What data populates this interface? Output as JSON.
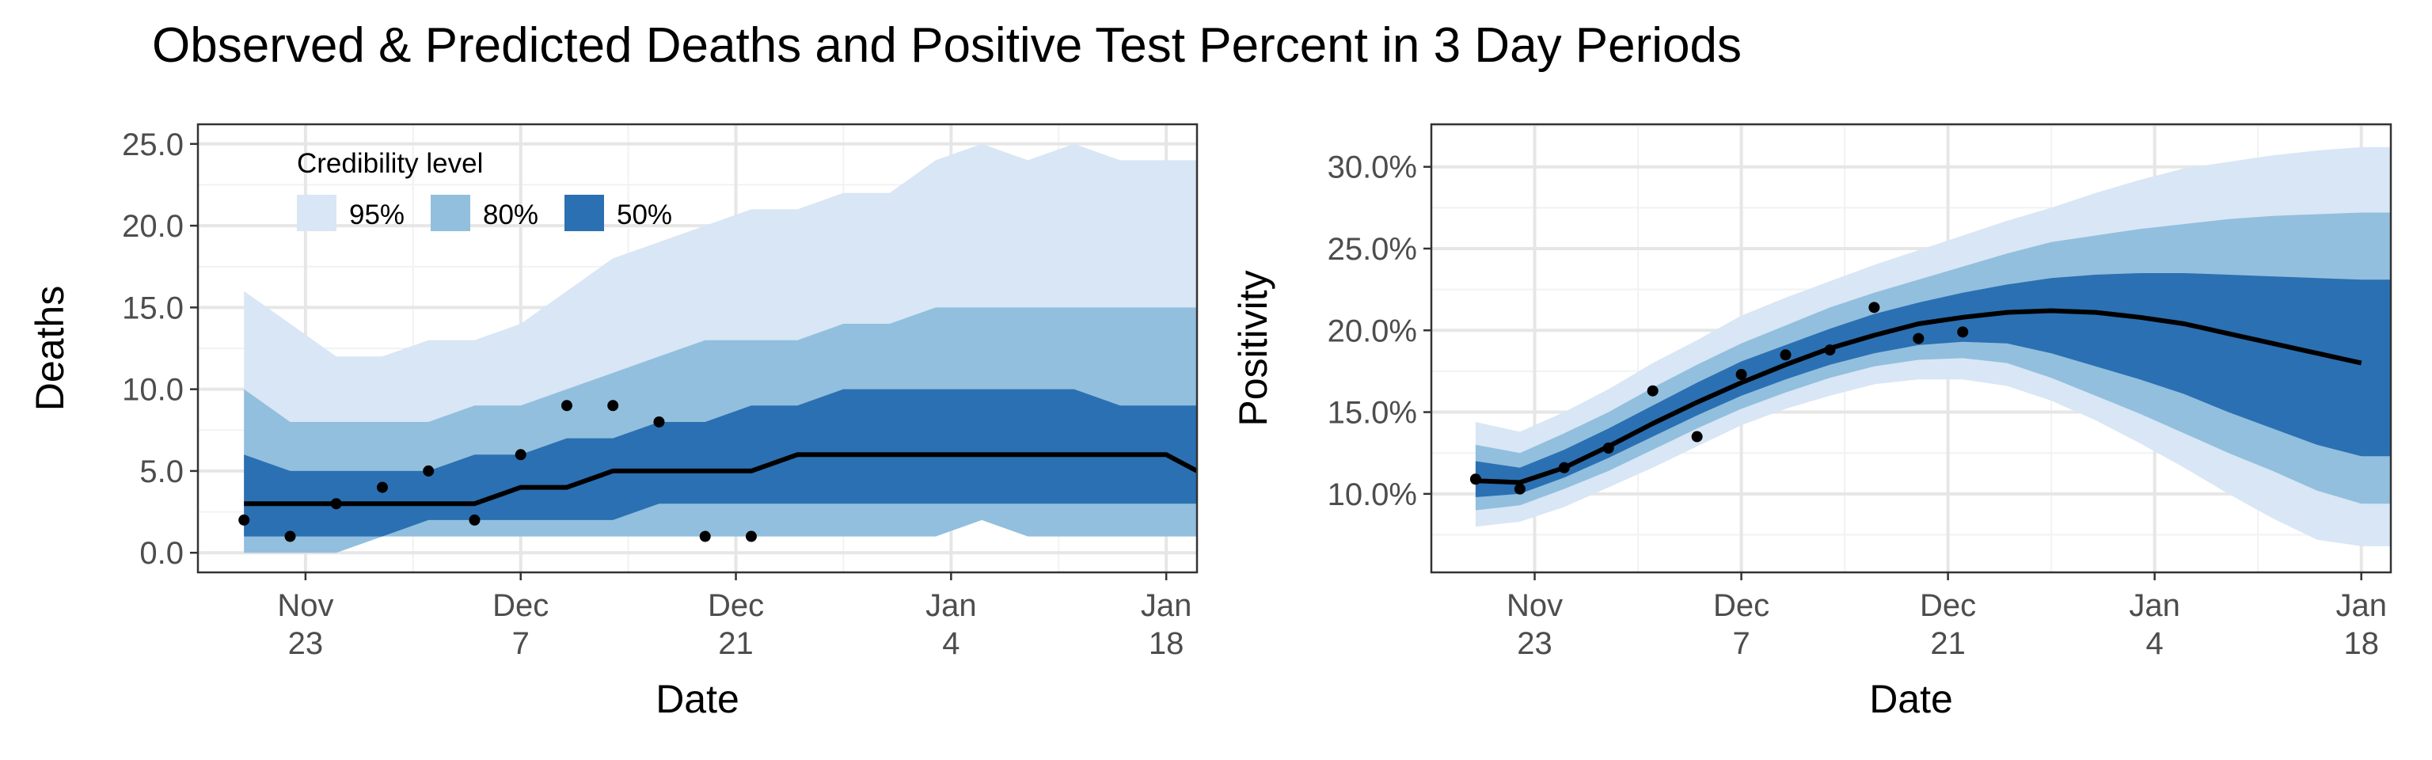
{
  "title": "Observed & Predicted Deaths and Positive Test Percent in 3 Day Periods",
  "colors": {
    "band95": "#d8e6f5",
    "band80": "#92bfdd",
    "band50": "#2b70b2",
    "line": "#000000",
    "point": "#000000"
  },
  "legend": {
    "title": "Credibility level",
    "placement": "inside-top-left (left panel)",
    "entries": [
      {
        "label": "95%",
        "color": "#d8e6f5"
      },
      {
        "label": "80%",
        "color": "#92bfdd"
      },
      {
        "label": "50%",
        "color": "#2b70b2"
      }
    ]
  },
  "chart_data": [
    {
      "type": "area",
      "xlabel": "Date",
      "ylabel": "Deaths",
      "grid": true,
      "xlim": [
        "2020-11-16",
        "2021-01-20"
      ],
      "ylim": [
        -1.2,
        26.2
      ],
      "x_ticks": [
        {
          "date": "2020-11-23",
          "line1": "Nov",
          "line2": "23"
        },
        {
          "date": "2020-12-07",
          "line1": "Dec",
          "line2": "7"
        },
        {
          "date": "2020-12-21",
          "line1": "Dec",
          "line2": "21"
        },
        {
          "date": "2021-01-04",
          "line1": "Jan",
          "line2": "4"
        },
        {
          "date": "2021-01-18",
          "line1": "Jan",
          "line2": "18"
        }
      ],
      "y_ticks": [
        {
          "value": 0,
          "label": "0.0"
        },
        {
          "value": 5,
          "label": "5.0"
        },
        {
          "value": 10,
          "label": "10.0"
        },
        {
          "value": 15,
          "label": "15.0"
        },
        {
          "value": 20,
          "label": "20.0"
        },
        {
          "value": 25,
          "label": "25.0"
        }
      ],
      "x": [
        "2020-11-19",
        "2020-11-22",
        "2020-11-25",
        "2020-11-28",
        "2020-12-01",
        "2020-12-04",
        "2020-12-07",
        "2020-12-10",
        "2020-12-13",
        "2020-12-16",
        "2020-12-19",
        "2020-12-22",
        "2020-12-25",
        "2020-12-28",
        "2020-12-31",
        "2021-01-03",
        "2021-01-06",
        "2021-01-09",
        "2021-01-12",
        "2021-01-15",
        "2021-01-18"
      ],
      "bands": [
        {
          "level": "95%",
          "lower": [
            0,
            0,
            0,
            1,
            1,
            1,
            1,
            1,
            1,
            1,
            1,
            1,
            1,
            1,
            1,
            1,
            2,
            1,
            1,
            1,
            1
          ],
          "upper": [
            16,
            14,
            12,
            12,
            13,
            13,
            14,
            16,
            18,
            19,
            20,
            21,
            21,
            22,
            22,
            24,
            25,
            24,
            25,
            24,
            24
          ]
        },
        {
          "level": "80%",
          "lower": [
            0,
            0,
            0,
            1,
            1,
            1,
            1,
            1,
            1,
            1,
            1,
            1,
            1,
            1,
            1,
            1,
            2,
            1,
            1,
            1,
            1
          ],
          "upper": [
            10,
            8,
            8,
            8,
            8,
            9,
            9,
            10,
            11,
            12,
            13,
            13,
            13,
            14,
            14,
            15,
            15,
            15,
            15,
            15,
            15
          ]
        },
        {
          "level": "50%",
          "lower": [
            1,
            1,
            1,
            1,
            2,
            2,
            2,
            2,
            2,
            3,
            3,
            3,
            3,
            3,
            3,
            3,
            3,
            3,
            3,
            3,
            3
          ],
          "upper": [
            6,
            5,
            5,
            5,
            5,
            6,
            6,
            7,
            7,
            8,
            8,
            9,
            9,
            10,
            10,
            10,
            10,
            10,
            10,
            9,
            9
          ]
        }
      ],
      "median": [
        3,
        3,
        3,
        3,
        3,
        3,
        4,
        4,
        5,
        5,
        5,
        5,
        6,
        6,
        6,
        6,
        6,
        6,
        6,
        6,
        5
      ],
      "line_x": [
        "2020-11-19",
        "2020-11-22",
        "2020-11-25",
        "2020-11-28",
        "2020-12-01",
        "2020-12-04",
        "2020-12-07",
        "2020-12-10",
        "2020-12-13",
        "2020-12-16",
        "2020-12-19",
        "2020-12-22",
        "2020-12-25",
        "2020-12-28",
        "2020-12-31",
        "2021-01-03",
        "2021-01-06",
        "2021-01-09",
        "2021-01-12",
        "2021-01-15",
        "2021-01-18",
        "2021-01-20"
      ],
      "line_y": [
        3,
        3,
        3,
        3,
        3,
        3,
        4,
        4,
        5,
        5,
        5,
        5,
        6,
        6,
        6,
        6,
        6,
        6,
        6,
        6,
        6,
        5
      ],
      "band_x_end": "2021-01-20",
      "observed": {
        "x": [
          "2020-11-19",
          "2020-11-22",
          "2020-11-25",
          "2020-11-28",
          "2020-12-01",
          "2020-12-04",
          "2020-12-07",
          "2020-12-10",
          "2020-12-13",
          "2020-12-16",
          "2020-12-19",
          "2020-12-22"
        ],
        "y": [
          2,
          1,
          3,
          4,
          5,
          2,
          6,
          9,
          9,
          8,
          1,
          1
        ]
      }
    },
    {
      "type": "area",
      "xlabel": "Date",
      "ylabel": "Positivity",
      "grid": true,
      "xlim": [
        "2020-11-16",
        "2021-01-20"
      ],
      "ylim": [
        5.2,
        32.6
      ],
      "x_ticks": [
        {
          "date": "2020-11-23",
          "line1": "Nov",
          "line2": "23"
        },
        {
          "date": "2020-12-07",
          "line1": "Dec",
          "line2": "7"
        },
        {
          "date": "2020-12-21",
          "line1": "Dec",
          "line2": "21"
        },
        {
          "date": "2021-01-04",
          "line1": "Jan",
          "line2": "4"
        },
        {
          "date": "2021-01-18",
          "line1": "Jan",
          "line2": "18"
        }
      ],
      "y_ticks": [
        {
          "value": 10,
          "label": "10.0%"
        },
        {
          "value": 15,
          "label": "15.0%"
        },
        {
          "value": 20,
          "label": "20.0%"
        },
        {
          "value": 25,
          "label": "25.0%"
        },
        {
          "value": 30,
          "label": "30.0%"
        }
      ],
      "x": [
        "2020-11-19",
        "2020-11-22",
        "2020-11-25",
        "2020-11-28",
        "2020-12-01",
        "2020-12-04",
        "2020-12-07",
        "2020-12-10",
        "2020-12-13",
        "2020-12-16",
        "2020-12-19",
        "2020-12-22",
        "2020-12-25",
        "2020-12-28",
        "2020-12-31",
        "2021-01-03",
        "2021-01-06",
        "2021-01-09",
        "2021-01-12",
        "2021-01-15",
        "2021-01-18"
      ],
      "bands": [
        {
          "level": "95%",
          "lower": [
            8.0,
            8.3,
            9.2,
            10.4,
            11.6,
            12.9,
            14.2,
            15.2,
            16.0,
            16.7,
            17.0,
            17.0,
            16.6,
            15.7,
            14.5,
            13.1,
            11.6,
            10.0,
            8.5,
            7.2,
            6.8
          ],
          "upper": [
            14.4,
            13.8,
            15.0,
            16.4,
            18.0,
            19.4,
            20.9,
            22.0,
            23.0,
            24.0,
            24.9,
            25.8,
            26.7,
            27.5,
            28.4,
            29.2,
            29.9,
            30.3,
            30.7,
            31.0,
            31.2
          ]
        },
        {
          "level": "80%",
          "lower": [
            9.0,
            9.3,
            10.3,
            11.4,
            12.7,
            14.0,
            15.2,
            16.2,
            17.1,
            17.8,
            18.2,
            18.3,
            18.0,
            17.1,
            16.0,
            14.9,
            13.7,
            12.5,
            11.4,
            10.2,
            9.4
          ],
          "upper": [
            13.0,
            12.5,
            13.7,
            15.0,
            16.5,
            17.9,
            19.2,
            20.3,
            21.4,
            22.3,
            23.1,
            23.9,
            24.7,
            25.4,
            25.8,
            26.2,
            26.5,
            26.8,
            27.0,
            27.1,
            27.2
          ]
        },
        {
          "level": "50%",
          "lower": [
            9.8,
            10.0,
            11.0,
            12.2,
            13.5,
            14.8,
            16.0,
            17.0,
            17.9,
            18.6,
            19.1,
            19.3,
            19.2,
            18.6,
            17.8,
            17.0,
            16.1,
            15.0,
            14.0,
            13.0,
            12.3
          ],
          "upper": [
            12.0,
            11.6,
            12.7,
            14.0,
            15.4,
            16.8,
            18.1,
            19.1,
            20.1,
            21.0,
            21.7,
            22.3,
            22.8,
            23.2,
            23.4,
            23.5,
            23.5,
            23.4,
            23.3,
            23.2,
            23.1
          ]
        }
      ],
      "median": [
        10.8,
        10.7,
        11.6,
        12.9,
        14.3,
        15.6,
        16.8,
        17.9,
        18.9,
        19.7,
        20.4,
        20.8,
        21.1,
        21.2,
        21.1,
        20.8,
        20.4,
        19.8,
        19.2,
        18.6,
        18.0
      ],
      "band_x_end": "2021-01-20",
      "observed": {
        "x": [
          "2020-11-19",
          "2020-11-22",
          "2020-11-25",
          "2020-11-28",
          "2020-12-01",
          "2020-12-04",
          "2020-12-07",
          "2020-12-10",
          "2020-12-13",
          "2020-12-16",
          "2020-12-19",
          "2020-12-22"
        ],
        "y": [
          10.9,
          10.3,
          11.6,
          12.8,
          16.3,
          13.5,
          17.3,
          18.5,
          18.8,
          21.4,
          19.5,
          19.9
        ]
      }
    }
  ]
}
